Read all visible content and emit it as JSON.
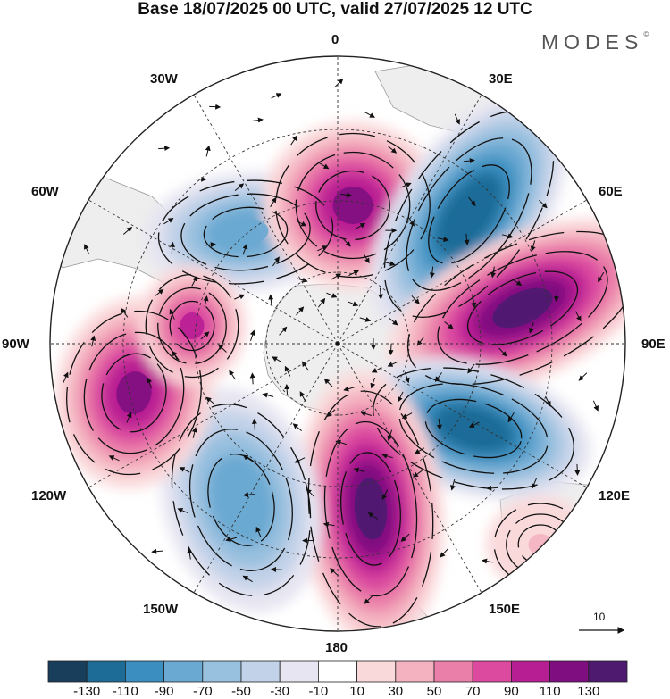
{
  "title": "Base 18/07/2025 00 UTC, valid 27/07/2025 12 UTC",
  "brand": {
    "name": "MODES",
    "mark": "©"
  },
  "longitude_labels": {
    "lon_0": "0",
    "lon_30e": "30E",
    "lon_60e": "60E",
    "lon_90e": "90E",
    "lon_120e": "120E",
    "lon_150e": "150E",
    "lon_180": "180",
    "lon_150w": "150W",
    "lon_120w": "120W",
    "lon_90w": "90W",
    "lon_60w": "60W",
    "lon_30w": "30W"
  },
  "reference_vector": "10",
  "colorbar": {
    "labels": [
      "-130",
      "-110",
      "-90",
      "-70",
      "-50",
      "-30",
      "-10",
      "10",
      "30",
      "50",
      "70",
      "90",
      "110",
      "130"
    ],
    "colors": [
      "#183e5c",
      "#1d6c98",
      "#3b8fc0",
      "#6aa9d2",
      "#98c0df",
      "#c2d2e8",
      "#e6e5f1",
      "#ffffff",
      "#fad9da",
      "#f4b2c0",
      "#ea7fa9",
      "#dc4aa0",
      "#b81e93",
      "#7f0f80",
      "#4d1a70"
    ]
  },
  "anomaly_centers": [
    {
      "id": "neg-atlantic",
      "value": -90
    },
    {
      "id": "pos-greenwich",
      "value": 110
    },
    {
      "id": "neg-30e",
      "value": -130
    },
    {
      "id": "pos-75e",
      "value": 130
    },
    {
      "id": "neg-110e",
      "value": -130
    },
    {
      "id": "pos-160e",
      "value": 130
    },
    {
      "id": "neg-130w",
      "value": -90
    },
    {
      "id": "pos-100w",
      "value": 110
    },
    {
      "id": "pos-80w",
      "value": 90
    },
    {
      "id": "pos-120e-far",
      "value": 30
    }
  ],
  "colors": {
    "land": "#eeeeee",
    "ocean": "#ffffff",
    "graticule": "#333333",
    "streamline": "#111111"
  }
}
